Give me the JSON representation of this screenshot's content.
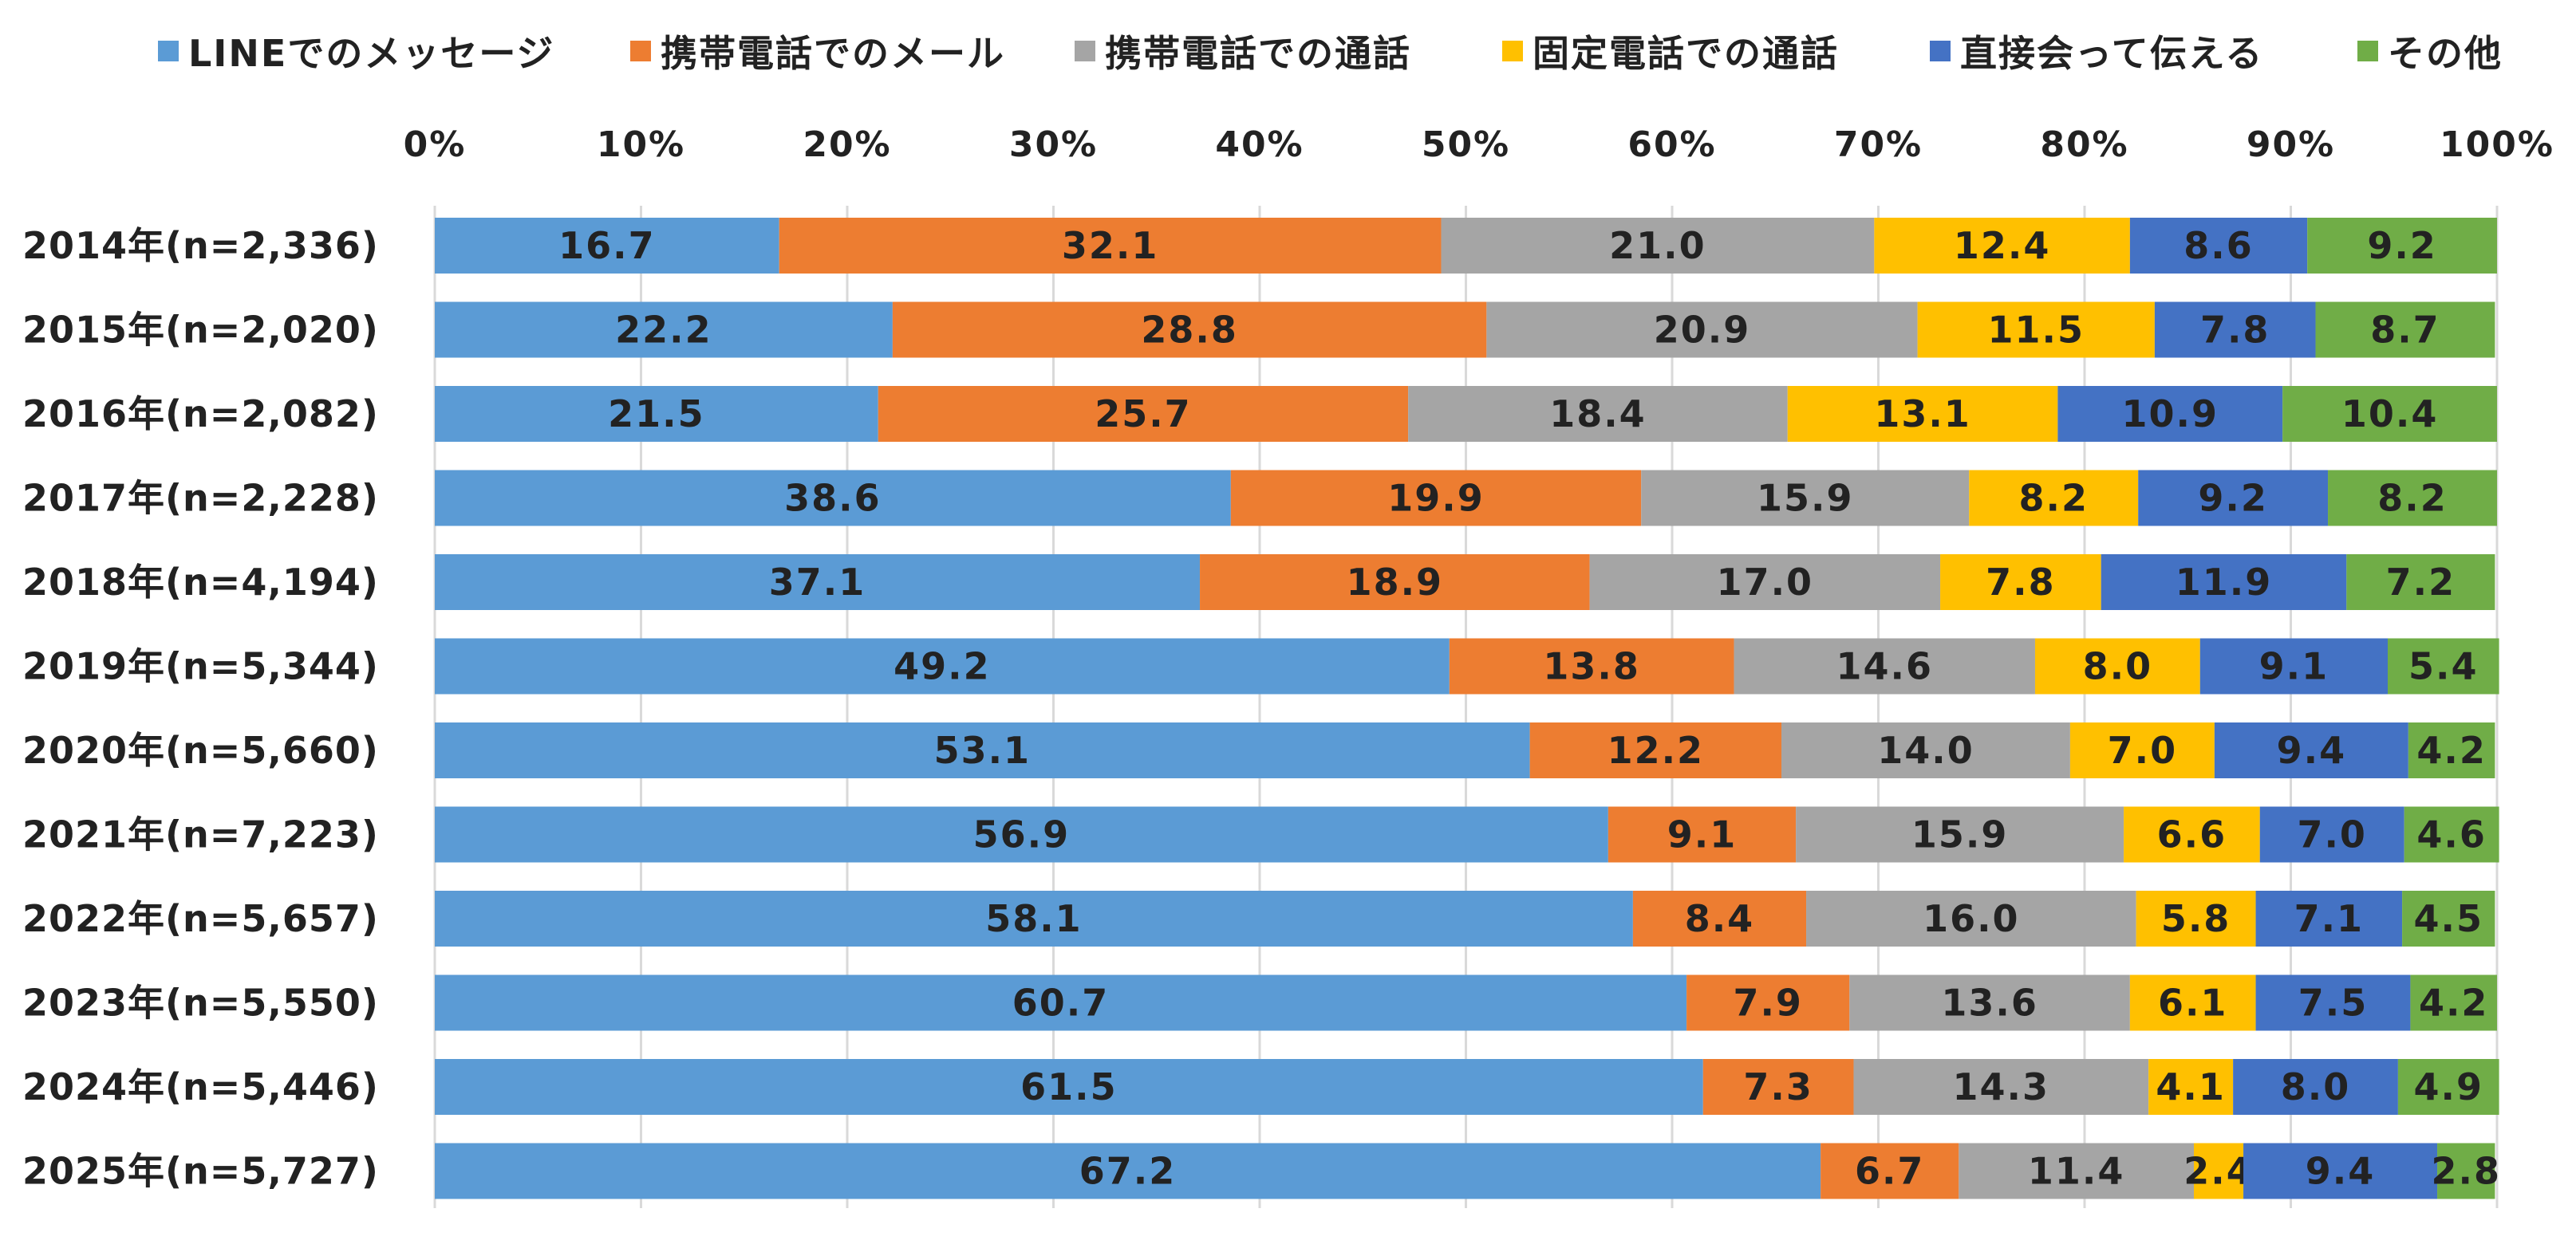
{
  "chart_data": {
    "type": "bar",
    "orientation": "horizontal",
    "stacked": true,
    "title": "",
    "xlabel": "",
    "ylabel": "",
    "xlim": [
      0,
      100
    ],
    "x_ticks": [
      "0%",
      "10%",
      "20%",
      "30%",
      "40%",
      "50%",
      "60%",
      "70%",
      "80%",
      "90%",
      "100%"
    ],
    "x_axis_position": "top",
    "grid": true,
    "legend_position": "top",
    "categories": [
      "2014年(n=2,336)",
      "2015年(n=2,020)",
      "2016年(n=2,082)",
      "2017年(n=2,228)",
      "2018年(n=4,194)",
      "2019年(n=5,344)",
      "2020年(n=5,660)",
      "2021年(n=7,223)",
      "2022年(n=5,657)",
      "2023年(n=5,550)",
      "2024年(n=5,446)",
      "2025年(n=5,727)"
    ],
    "series": [
      {
        "name": "LINEでのメッセージ",
        "color": "#5b9bd5",
        "values": [
          16.7,
          22.2,
          21.5,
          38.6,
          37.1,
          49.2,
          53.1,
          56.9,
          58.1,
          60.7,
          61.5,
          67.2
        ]
      },
      {
        "name": "携帯電話でのメール",
        "color": "#ed7d31",
        "values": [
          32.1,
          28.8,
          25.7,
          19.9,
          18.9,
          13.8,
          12.2,
          9.1,
          8.4,
          7.9,
          7.3,
          6.7
        ]
      },
      {
        "name": "携帯電話での通話",
        "color": "#a5a5a5",
        "values": [
          21.0,
          20.9,
          18.4,
          15.9,
          17.0,
          14.6,
          14.0,
          15.9,
          16.0,
          13.6,
          14.3,
          11.4
        ]
      },
      {
        "name": "固定電話での通話",
        "color": "#ffc000",
        "values": [
          12.4,
          11.5,
          13.1,
          8.2,
          7.8,
          8.0,
          7.0,
          6.6,
          5.8,
          6.1,
          4.1,
          2.4
        ]
      },
      {
        "name": "直接会って伝える",
        "color": "#4472c4",
        "values": [
          8.6,
          7.8,
          10.9,
          9.2,
          11.9,
          9.1,
          9.4,
          7.0,
          7.1,
          7.5,
          8.0,
          9.4
        ]
      },
      {
        "name": "その他",
        "color": "#70ad47",
        "values": [
          9.2,
          8.7,
          10.4,
          8.2,
          7.2,
          5.4,
          4.2,
          4.6,
          4.5,
          4.2,
          4.9,
          2.8
        ]
      }
    ]
  }
}
